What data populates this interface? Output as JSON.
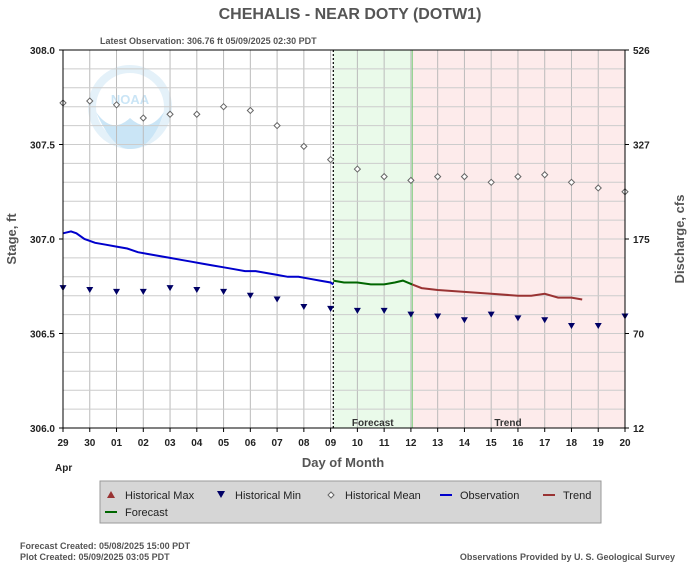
{
  "colors": {
    "observation": "#0000cc",
    "forecast": "#006600",
    "trend": "#993333",
    "historical_max": "#993333",
    "historical_min": "#000066",
    "historical_mean": "#666666",
    "forecast_band": "#eafaea",
    "trend_band": "#fdebeb",
    "legend_bg": "#d6d6d6"
  },
  "logo": {
    "text": "NOAA",
    "icon": "noaa-logo-icon"
  },
  "chart_data": {
    "type": "line",
    "title": "CHEHALIS - NEAR DOTY  (DOTW1)",
    "subtitle": "Latest Observation: 306.76 ft 05/09/2025 02:30 PDT",
    "xlabel": "Day of Month",
    "x_month_label": "Apr",
    "ylabel_left": "Stage, ft",
    "ylabel_right": "Discharge, cfs",
    "x_tick_labels": [
      "29",
      "30",
      "01",
      "02",
      "03",
      "04",
      "05",
      "06",
      "07",
      "08",
      "09",
      "10",
      "11",
      "12",
      "13",
      "14",
      "15",
      "16",
      "17",
      "18",
      "19",
      "20"
    ],
    "xlim": [
      0,
      21
    ],
    "ylim": [
      306.0,
      308.0
    ],
    "y_ticks": [
      306.0,
      306.5,
      307.0,
      307.5,
      308.0
    ],
    "y_tick_labels": [
      "306.0",
      "306.5",
      "307.0",
      "307.5",
      "308.0"
    ],
    "right_ticks": [
      {
        "stage": 306.0,
        "label": "12"
      },
      {
        "stage": 306.5,
        "label": "70"
      },
      {
        "stage": 307.0,
        "label": "175"
      },
      {
        "stage": 307.5,
        "label": "327"
      },
      {
        "stage": 308.0,
        "label": "526"
      }
    ],
    "grid": true,
    "current_time_x": 10.1,
    "bands": [
      {
        "name": "Forecast",
        "start": 10.1,
        "end": 13.05
      },
      {
        "name": "Trend",
        "start": 13.05,
        "end": 21
      }
    ],
    "series": [
      {
        "name": "Observation",
        "style": "line",
        "points": [
          [
            0,
            307.03
          ],
          [
            0.3,
            307.04
          ],
          [
            0.5,
            307.03
          ],
          [
            0.8,
            307.0
          ],
          [
            1.2,
            306.98
          ],
          [
            1.6,
            306.97
          ],
          [
            2.0,
            306.96
          ],
          [
            2.4,
            306.95
          ],
          [
            2.8,
            306.93
          ],
          [
            3.2,
            306.92
          ],
          [
            3.6,
            306.91
          ],
          [
            4.0,
            306.9
          ],
          [
            4.4,
            306.89
          ],
          [
            4.8,
            306.88
          ],
          [
            5.2,
            306.87
          ],
          [
            5.6,
            306.86
          ],
          [
            6.0,
            306.85
          ],
          [
            6.4,
            306.84
          ],
          [
            6.8,
            306.83
          ],
          [
            7.2,
            306.83
          ],
          [
            7.6,
            306.82
          ],
          [
            8.0,
            306.81
          ],
          [
            8.4,
            306.8
          ],
          [
            8.8,
            306.8
          ],
          [
            9.2,
            306.79
          ],
          [
            9.6,
            306.78
          ],
          [
            10.0,
            306.77
          ],
          [
            10.1,
            306.76
          ]
        ]
      },
      {
        "name": "Forecast",
        "style": "line",
        "points": [
          [
            10.1,
            306.78
          ],
          [
            10.5,
            306.77
          ],
          [
            11.0,
            306.77
          ],
          [
            11.5,
            306.76
          ],
          [
            12.0,
            306.76
          ],
          [
            12.4,
            306.77
          ],
          [
            12.7,
            306.78
          ],
          [
            13.05,
            306.76
          ]
        ]
      },
      {
        "name": "Trend",
        "style": "line",
        "points": [
          [
            13.05,
            306.76
          ],
          [
            13.4,
            306.74
          ],
          [
            14.0,
            306.73
          ],
          [
            15.0,
            306.72
          ],
          [
            16.0,
            306.71
          ],
          [
            17.0,
            306.7
          ],
          [
            17.5,
            306.7
          ],
          [
            18.0,
            306.71
          ],
          [
            18.5,
            306.69
          ],
          [
            19.0,
            306.69
          ],
          [
            19.4,
            306.68
          ]
        ]
      },
      {
        "name": "Historical Min",
        "style": "marker-triangle-down",
        "points": [
          [
            0,
            306.74
          ],
          [
            1,
            306.73
          ],
          [
            2,
            306.72
          ],
          [
            3,
            306.72
          ],
          [
            4,
            306.74
          ],
          [
            5,
            306.73
          ],
          [
            6,
            306.72
          ],
          [
            7,
            306.7
          ],
          [
            8,
            306.68
          ],
          [
            9,
            306.64
          ],
          [
            10,
            306.63
          ],
          [
            11,
            306.62
          ],
          [
            12,
            306.62
          ],
          [
            13,
            306.6
          ],
          [
            14,
            306.59
          ],
          [
            15,
            306.57
          ],
          [
            16,
            306.6
          ],
          [
            17,
            306.58
          ],
          [
            18,
            306.57
          ],
          [
            19,
            306.54
          ],
          [
            20,
            306.54
          ],
          [
            21,
            306.59
          ]
        ]
      },
      {
        "name": "Historical Mean",
        "style": "marker-diamond",
        "points": [
          [
            0,
            307.72
          ],
          [
            1,
            307.73
          ],
          [
            2,
            307.71
          ],
          [
            3,
            307.64
          ],
          [
            4,
            307.66
          ],
          [
            5,
            307.66
          ],
          [
            6,
            307.7
          ],
          [
            7,
            307.68
          ],
          [
            8,
            307.6
          ],
          [
            9,
            307.49
          ],
          [
            10,
            307.42
          ],
          [
            11,
            307.37
          ],
          [
            12,
            307.33
          ],
          [
            13,
            307.31
          ],
          [
            14,
            307.33
          ],
          [
            15,
            307.33
          ],
          [
            16,
            307.3
          ],
          [
            17,
            307.33
          ],
          [
            18,
            307.34
          ],
          [
            19,
            307.3
          ],
          [
            20,
            307.27
          ],
          [
            21,
            307.25
          ]
        ]
      }
    ]
  },
  "legend": {
    "items": [
      {
        "label": "Historical Max",
        "marker": "triangle-up",
        "color": "#993333"
      },
      {
        "label": "Historical Min",
        "marker": "triangle-down",
        "color": "#000066"
      },
      {
        "label": "Historical Mean",
        "marker": "diamond",
        "color": "#666666"
      },
      {
        "label": "Observation",
        "marker": "line",
        "color": "#0000cc"
      },
      {
        "label": "Trend",
        "marker": "line",
        "color": "#993333"
      },
      {
        "label": "Forecast",
        "marker": "line",
        "color": "#006600"
      }
    ]
  },
  "footer": {
    "forecast_created": "Forecast Created: 05/08/2025 15:00 PDT",
    "plot_created": "Plot Created: 05/09/2025 03:05 PDT",
    "credit": "Observations Provided by U. S. Geological Survey"
  }
}
